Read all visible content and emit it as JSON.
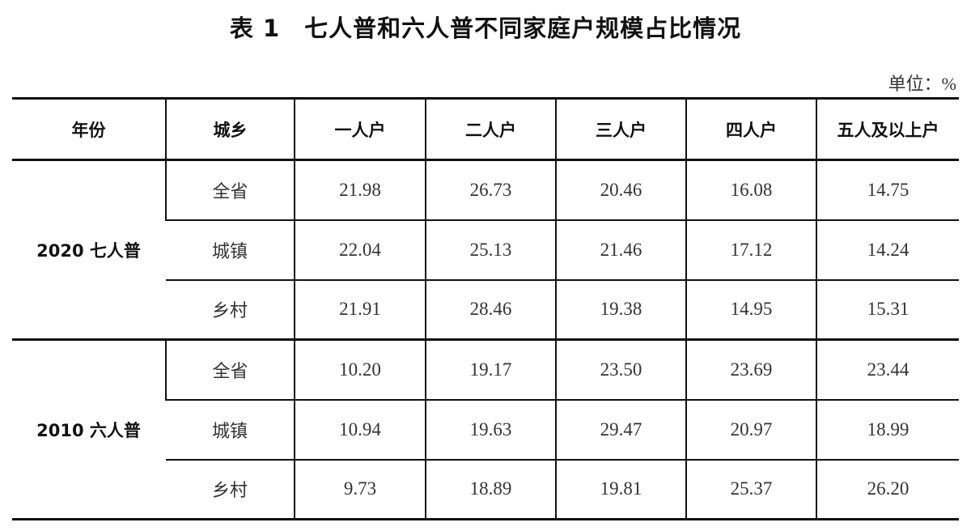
{
  "title": "表 1　七人普和六人普不同家庭户规模占比情况",
  "unit": "单位：%",
  "table": {
    "headers": [
      "年份",
      "城乡",
      "一人户",
      "二人户",
      "三人户",
      "四人户",
      "五人及以上户"
    ],
    "groups": [
      {
        "year": "2020 七人普",
        "rows": [
          {
            "area": "全省",
            "values": [
              "21.98",
              "26.73",
              "20.46",
              "16.08",
              "14.75"
            ]
          },
          {
            "area": "城镇",
            "values": [
              "22.04",
              "25.13",
              "21.46",
              "17.12",
              "14.24"
            ]
          },
          {
            "area": "乡村",
            "values": [
              "21.91",
              "28.46",
              "19.38",
              "14.95",
              "15.31"
            ]
          }
        ]
      },
      {
        "year": "2010 六人普",
        "rows": [
          {
            "area": "全省",
            "values": [
              "10.20",
              "19.17",
              "23.50",
              "23.69",
              "23.44"
            ]
          },
          {
            "area": "城镇",
            "values": [
              "10.94",
              "19.63",
              "29.47",
              "20.97",
              "18.99"
            ]
          },
          {
            "area": "乡村",
            "values": [
              "9.73",
              "18.89",
              "19.81",
              "25.37",
              "26.20"
            ]
          }
        ]
      }
    ]
  }
}
